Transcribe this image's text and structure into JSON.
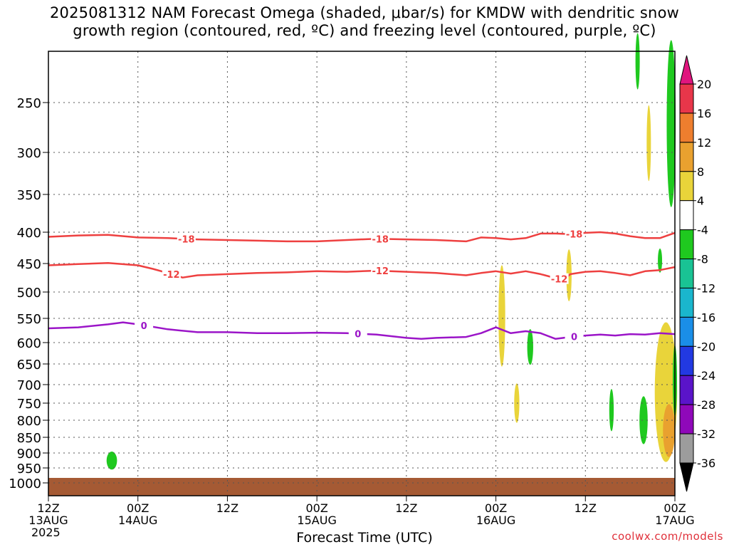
{
  "title": {
    "line1": "2025081312 NAM Forecast Omega (shaded, μbar/s) for KMDW with dendritic snow",
    "line2": "growth region (contoured, red, ºC) and freezing level (contoured, purple, ºC)"
  },
  "xlabel": "Forecast Time (UTC)",
  "year_label": "2025",
  "credit": "coolwx.com/models",
  "chart_data": {
    "type": "contour",
    "x_ticks": [
      {
        "hour": 0,
        "top": "12Z",
        "bottom": "13AUG"
      },
      {
        "hour": 12,
        "top": "00Z",
        "bottom": "14AUG"
      },
      {
        "hour": 24,
        "top": "12Z",
        "bottom": ""
      },
      {
        "hour": 36,
        "top": "00Z",
        "bottom": "15AUG"
      },
      {
        "hour": 48,
        "top": "12Z",
        "bottom": ""
      },
      {
        "hour": 60,
        "top": "00Z",
        "bottom": "16AUG"
      },
      {
        "hour": 72,
        "top": "12Z",
        "bottom": ""
      },
      {
        "hour": 84,
        "top": "00Z",
        "bottom": "17AUG"
      }
    ],
    "y_ticks": [
      250,
      300,
      350,
      400,
      450,
      500,
      550,
      600,
      650,
      700,
      750,
      800,
      850,
      900,
      950,
      1000
    ],
    "colorbar": {
      "labels": [
        "20",
        "16",
        "12",
        "8",
        "4",
        "-4",
        "-8",
        "-12",
        "-16",
        "-20",
        "-24",
        "-28",
        "-32",
        "-36"
      ],
      "colors": [
        "#e8364a",
        "#ee7e2e",
        "#e9a12f",
        "#e9d43a",
        "#ffffff",
        "#1fc91f",
        "#19c394",
        "#1ab6cd",
        "#1a8ee8",
        "#2239e2",
        "#5a14c9",
        "#8f08b9",
        "#9c9c9c"
      ],
      "top_arrow_color": "#e0157e",
      "bottom_arrow_color": "#000000"
    },
    "contours": [
      {
        "label": "-18",
        "color": "#ee4040",
        "label_hours": [
          18.5,
          44.5,
          70.5
        ],
        "points": [
          [
            0,
            407
          ],
          [
            4,
            405
          ],
          [
            8,
            404
          ],
          [
            12,
            408
          ],
          [
            16,
            409
          ],
          [
            20,
            411
          ],
          [
            24,
            412
          ],
          [
            28,
            413
          ],
          [
            32,
            414
          ],
          [
            36,
            414
          ],
          [
            40,
            412
          ],
          [
            44,
            410
          ],
          [
            48,
            411
          ],
          [
            52,
            412
          ],
          [
            56,
            414
          ],
          [
            58,
            408
          ],
          [
            60,
            409
          ],
          [
            62,
            411
          ],
          [
            64,
            409
          ],
          [
            66,
            402
          ],
          [
            68,
            402
          ],
          [
            70,
            403
          ],
          [
            72,
            401
          ],
          [
            74,
            400
          ],
          [
            76,
            402
          ],
          [
            78,
            406
          ],
          [
            80,
            409
          ],
          [
            82,
            409
          ],
          [
            84,
            401
          ]
        ]
      },
      {
        "label": "-12",
        "color": "#ee4040",
        "label_hours": [
          16.5,
          44.5,
          68.5
        ],
        "points": [
          [
            0,
            453
          ],
          [
            4,
            451
          ],
          [
            8,
            449
          ],
          [
            12,
            453
          ],
          [
            14,
            459
          ],
          [
            16,
            466
          ],
          [
            18,
            474
          ],
          [
            20,
            470
          ],
          [
            22,
            469
          ],
          [
            24,
            468
          ],
          [
            28,
            466
          ],
          [
            32,
            465
          ],
          [
            36,
            463
          ],
          [
            40,
            464
          ],
          [
            44,
            462
          ],
          [
            48,
            464
          ],
          [
            52,
            466
          ],
          [
            56,
            470
          ],
          [
            58,
            466
          ],
          [
            60,
            463
          ],
          [
            62,
            467
          ],
          [
            64,
            463
          ],
          [
            66,
            468
          ],
          [
            68,
            475
          ],
          [
            69,
            478
          ],
          [
            70,
            468
          ],
          [
            72,
            464
          ],
          [
            74,
            463
          ],
          [
            76,
            466
          ],
          [
            78,
            470
          ],
          [
            80,
            463
          ],
          [
            82,
            461
          ],
          [
            84,
            456
          ]
        ]
      },
      {
        "label": "0",
        "color": "#9b15c8",
        "label_hours": [
          12.8,
          41.5,
          70.5
        ],
        "points": [
          [
            0,
            570
          ],
          [
            4,
            568
          ],
          [
            8,
            562
          ],
          [
            10,
            558
          ],
          [
            12,
            562
          ],
          [
            16,
            572
          ],
          [
            20,
            578
          ],
          [
            24,
            578
          ],
          [
            28,
            580
          ],
          [
            32,
            580
          ],
          [
            36,
            579
          ],
          [
            40,
            580
          ],
          [
            44,
            583
          ],
          [
            48,
            590
          ],
          [
            50,
            592
          ],
          [
            52,
            590
          ],
          [
            56,
            588
          ],
          [
            58,
            580
          ],
          [
            60,
            568
          ],
          [
            62,
            580
          ],
          [
            64,
            576
          ],
          [
            66,
            580
          ],
          [
            68,
            592
          ],
          [
            70,
            588
          ],
          [
            72,
            585
          ],
          [
            74,
            583
          ],
          [
            76,
            585
          ],
          [
            78,
            582
          ],
          [
            80,
            583
          ],
          [
            82,
            580
          ],
          [
            84,
            582
          ]
        ]
      }
    ],
    "omega_regions": [
      {
        "level": "-4",
        "hour": 8.5,
        "p": 925,
        "rx": 0.7,
        "rp": 30
      },
      {
        "level": "-4",
        "hour": 79,
        "p": 215,
        "rx": 0.2,
        "rp": 22
      },
      {
        "level": "-4",
        "hour": 83.5,
        "p": 270,
        "rx": 0.6,
        "rp": 80
      },
      {
        "level": "4",
        "hour": 80.5,
        "p": 290,
        "rx": 0.2,
        "rp": 40
      },
      {
        "level": "-4",
        "hour": 82,
        "p": 445,
        "rx": 0.15,
        "rp": 20
      },
      {
        "level": "4",
        "hour": 60.8,
        "p": 545,
        "rx": 0.45,
        "rp": 100
      },
      {
        "level": "4",
        "hour": 69.8,
        "p": 470,
        "rx": 0.35,
        "rp": 45
      },
      {
        "level": "-4",
        "hour": 64.6,
        "p": 610,
        "rx": 0.4,
        "rp": 40
      },
      {
        "level": "4",
        "hour": 62.8,
        "p": 750,
        "rx": 0.35,
        "rp": 55
      },
      {
        "level": "-4",
        "hour": 75.5,
        "p": 770,
        "rx": 0.3,
        "rp": 60
      },
      {
        "level": "-4",
        "hour": 79.8,
        "p": 800,
        "rx": 0.55,
        "rp": 70
      },
      {
        "level": "4",
        "hour": 82.8,
        "p": 720,
        "rx": 1.5,
        "rp": 180
      },
      {
        "level": "8",
        "hour": 83.2,
        "p": 830,
        "rx": 0.8,
        "rp": 80
      },
      {
        "level": "-4",
        "hour": 84,
        "p": 690,
        "rx": 0.2,
        "rp": 90
      }
    ],
    "ground": {
      "color": "#a55a34",
      "top_p": 983
    }
  }
}
